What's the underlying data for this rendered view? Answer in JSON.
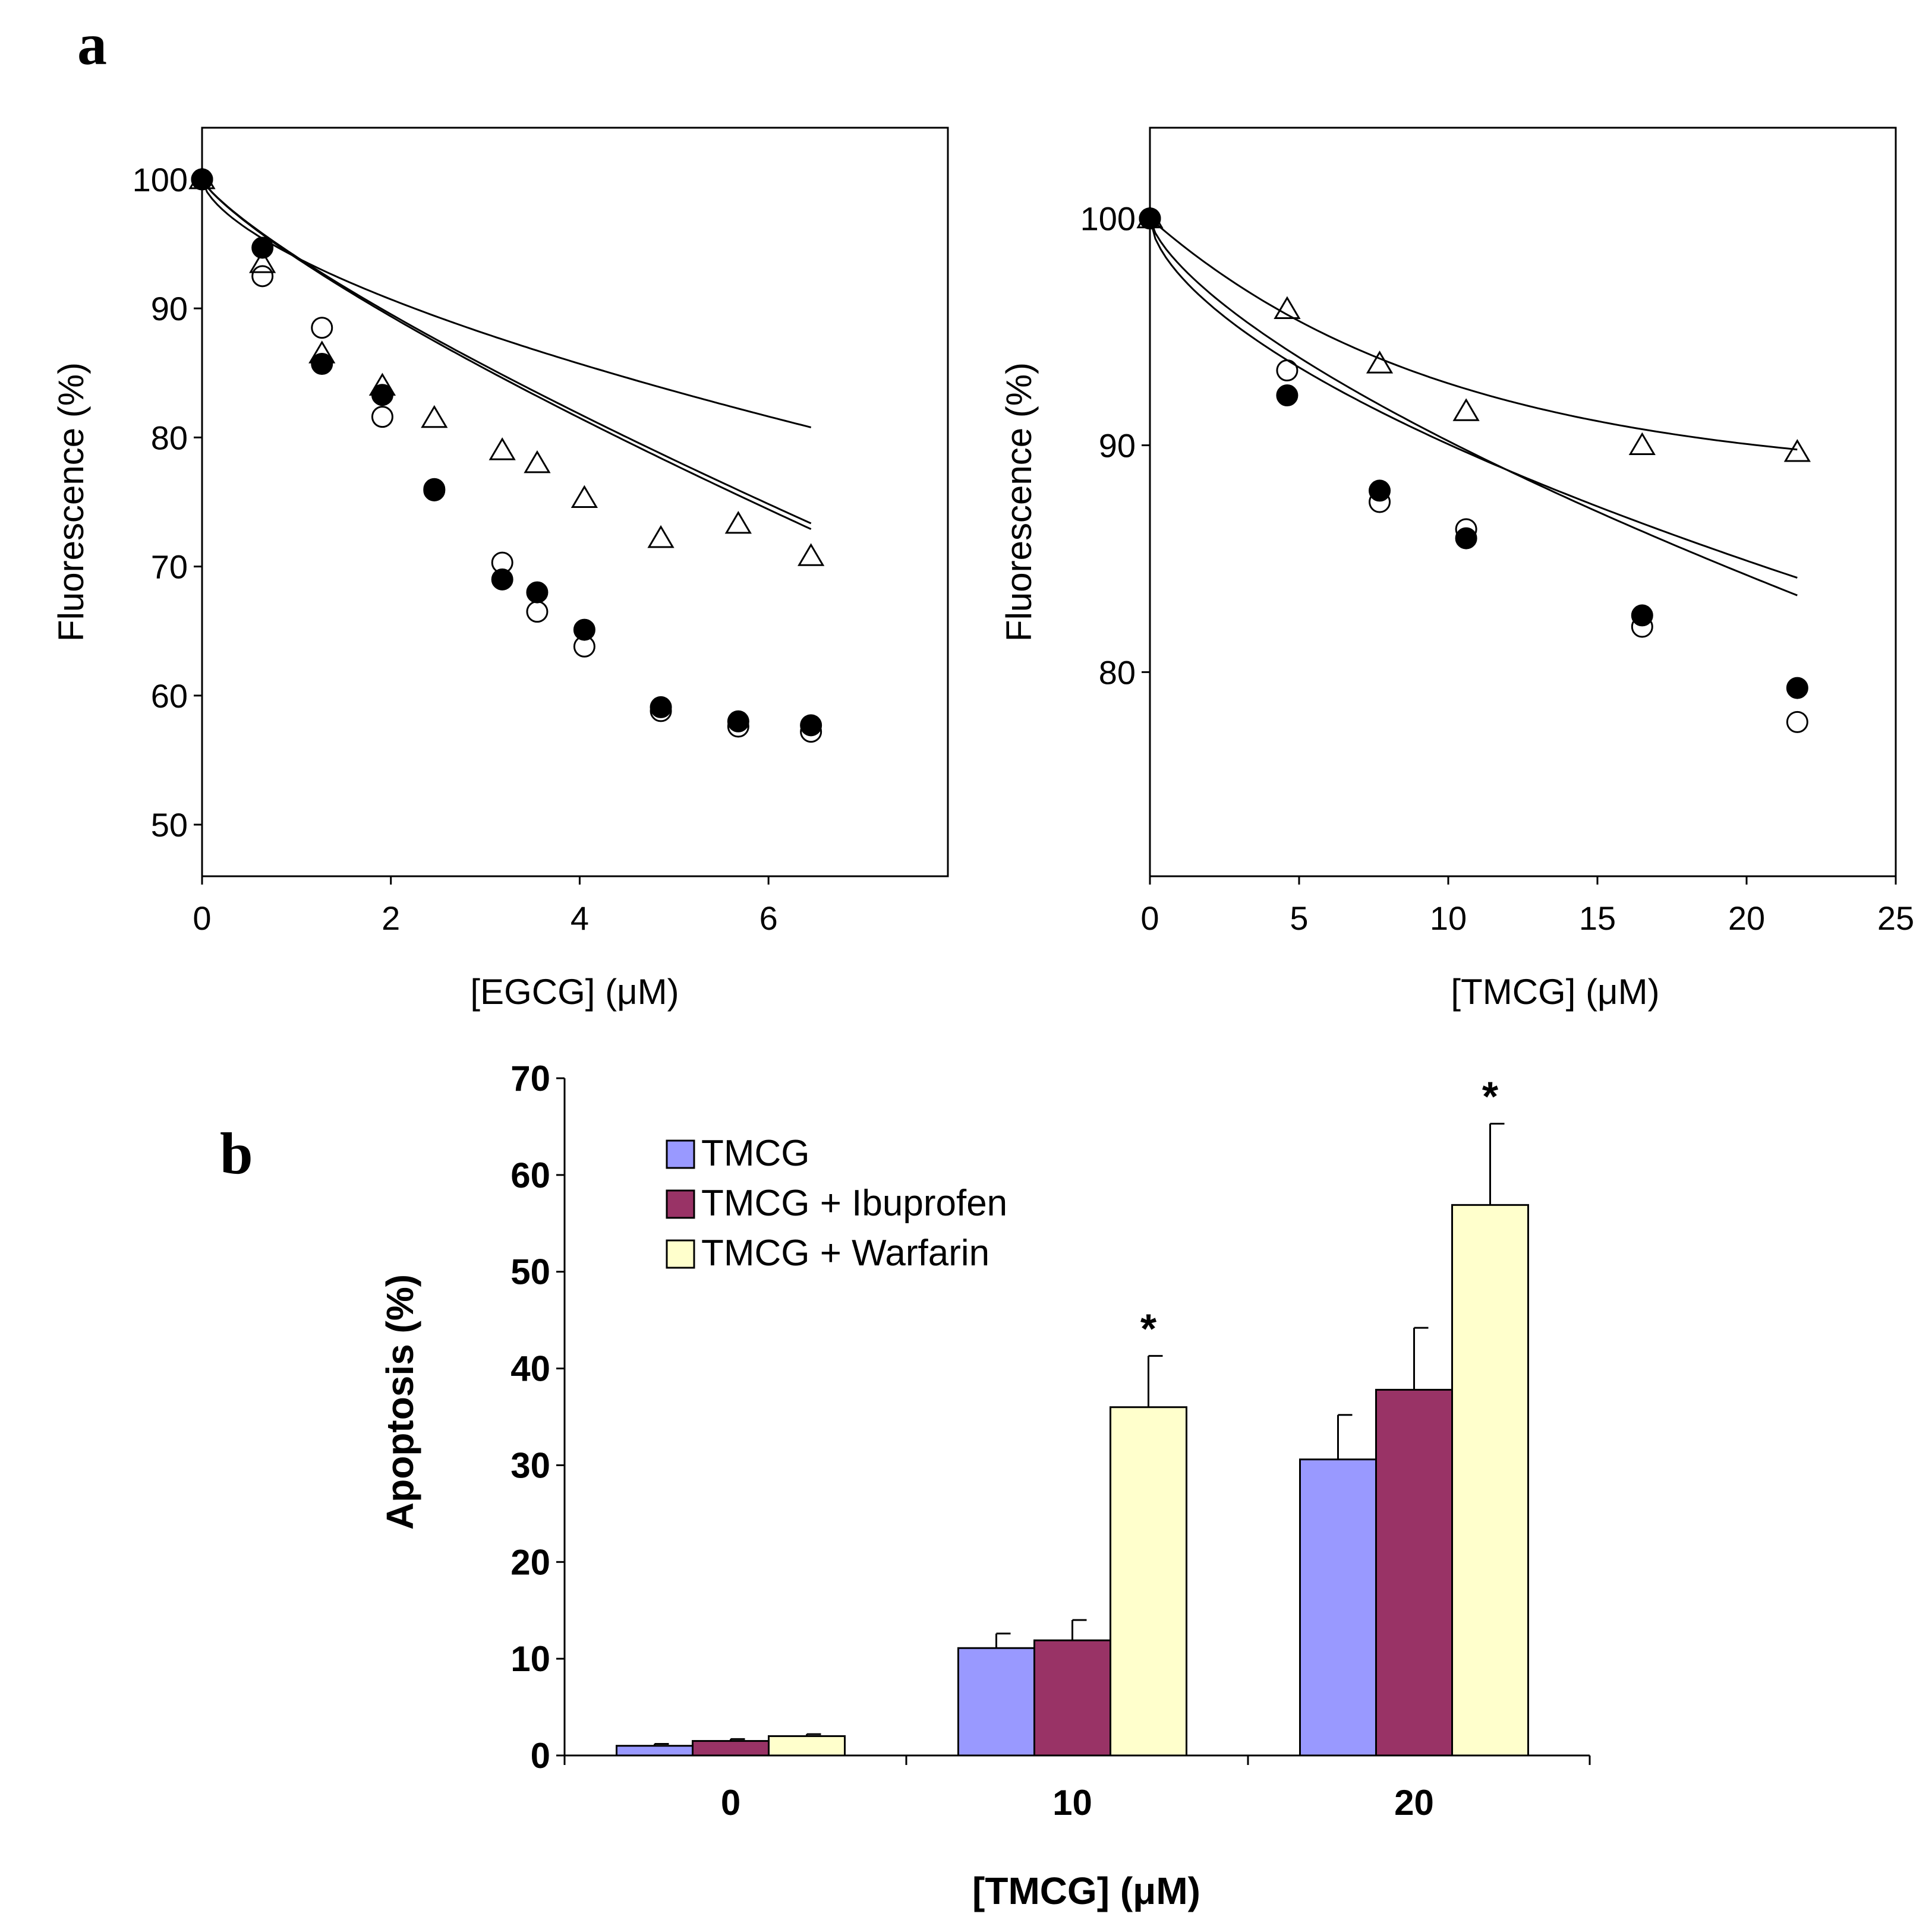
{
  "chart_data": [
    {
      "panel": "a",
      "type": "scatter",
      "title": "",
      "xlabel": "[EGCG] (μM)",
      "ylabel": "Fluorescence (%)",
      "xlim": [
        0,
        7.9
      ],
      "ylim": [
        46,
        104
      ],
      "xticks": [
        0,
        2,
        4,
        6
      ],
      "yticks": [
        50,
        60,
        70,
        80,
        90,
        100
      ],
      "series": [
        {
          "name": "filled circles",
          "marker": "filled-circle",
          "x": [
            0,
            0.64,
            1.27,
            1.91,
            2.46,
            3.18,
            3.55,
            4.05,
            4.86,
            5.68,
            6.45
          ],
          "y": [
            100,
            94.7,
            85.7,
            83.3,
            75.9,
            69.0,
            68.0,
            65.1,
            59.1,
            58.0,
            57.7
          ],
          "fit": {
            "a": 100,
            "b": 6.0,
            "p": 0.8
          }
        },
        {
          "name": "open circles",
          "marker": "open-circle",
          "x": [
            0,
            0.64,
            1.27,
            1.91,
            2.46,
            3.18,
            3.55,
            4.05,
            4.86,
            5.68,
            6.45
          ],
          "y": [
            100,
            92.5,
            88.5,
            81.6,
            76.0,
            70.3,
            66.5,
            63.8,
            58.8,
            57.6,
            57.2
          ],
          "fit": {
            "a": 100,
            "b": 6.1,
            "p": 0.8
          }
        },
        {
          "name": "open triangles",
          "marker": "open-triangle",
          "x": [
            0,
            0.64,
            1.27,
            1.91,
            2.46,
            3.18,
            3.55,
            4.05,
            4.86,
            5.68,
            6.45
          ],
          "y": [
            100,
            93.5,
            86.5,
            84.0,
            81.5,
            79.0,
            78.0,
            75.3,
            72.2,
            73.3,
            70.8
          ],
          "fit": {
            "a": 100,
            "b": 6.05,
            "p": 0.62
          }
        }
      ]
    },
    {
      "panel": "a",
      "type": "scatter",
      "title": "",
      "xlabel": "[TMCG] (μM)",
      "ylabel": "Fluorescence (%)",
      "xlim": [
        0,
        25
      ],
      "ylim": [
        71,
        104
      ],
      "xticks": [
        0,
        5,
        10,
        15,
        20,
        25
      ],
      "yticks": [
        80,
        90,
        100
      ],
      "series": [
        {
          "name": "filled circles",
          "marker": "filled-circle",
          "x": [
            0,
            4.6,
            7.7,
            10.6,
            16.5,
            21.7
          ],
          "y": [
            100,
            92.2,
            88.0,
            85.9,
            82.5,
            79.3
          ],
          "fit": {
            "a": 100,
            "b": 2.5,
            "p": 0.6
          }
        },
        {
          "name": "open circles",
          "marker": "open-circle",
          "x": [
            0,
            4.6,
            7.7,
            10.6,
            16.5,
            21.7
          ],
          "y": [
            100,
            93.3,
            87.5,
            86.3,
            82.0,
            77.8
          ],
          "fit": {
            "a": 100,
            "b": 2.05,
            "p": 0.68
          }
        },
        {
          "name": "open triangles",
          "marker": "open-triangle",
          "x": [
            0,
            4.6,
            7.7,
            10.6,
            16.5,
            21.7
          ],
          "y": [
            100,
            96.0,
            93.6,
            91.5,
            90.0,
            89.7
          ],
          "fit": {
            "type": "exp",
            "plateau": 88.5,
            "k": 0.1
          }
        }
      ]
    },
    {
      "panel": "b",
      "type": "bar",
      "title": "",
      "xlabel": "[TMCG] (μM)",
      "ylabel": "Apoptosis (%)",
      "ylim": [
        0,
        70
      ],
      "yticks": [
        0,
        10,
        20,
        30,
        40,
        50,
        60,
        70
      ],
      "categories": [
        "0",
        "10",
        "20"
      ],
      "series": [
        {
          "name": "TMCG",
          "color": "#9999ff",
          "values": [
            1.0,
            11.1,
            30.6
          ],
          "errors": [
            0.2,
            1.5,
            4.6
          ],
          "stars": [
            false,
            false,
            false
          ]
        },
        {
          "name": "TMCG + Ibuprofen",
          "color": "#993366",
          "values": [
            1.5,
            11.9,
            37.8
          ],
          "errors": [
            0.2,
            2.1,
            6.4
          ],
          "stars": [
            false,
            false,
            false
          ]
        },
        {
          "name": "TMCG + Warfarin",
          "color": "#ffffcc",
          "values": [
            2.0,
            36.0,
            56.9
          ],
          "errors": [
            0.2,
            5.3,
            8.4
          ],
          "stars": [
            false,
            true,
            true
          ]
        }
      ],
      "star_label": "*",
      "legend_position": "top-left"
    }
  ],
  "panel_labels": {
    "a": "a",
    "b": "b"
  }
}
